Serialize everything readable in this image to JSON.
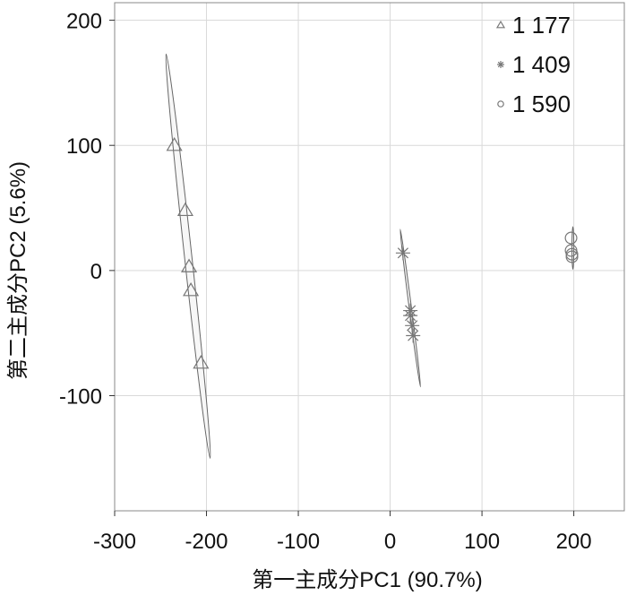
{
  "chart_data": {
    "type": "scatter",
    "title": "",
    "xlabel": "第一主成分PC1  (90.7%)",
    "ylabel": "第二主成分PC2 (5.6%)",
    "xlim": [
      -300,
      255
    ],
    "ylim": [
      -192,
      214
    ],
    "xticks": [
      -300,
      -200,
      -100,
      0,
      100,
      200
    ],
    "yticks": [
      -100,
      0,
      100,
      200
    ],
    "xtick_labels": [
      "-300",
      "-200",
      "-100",
      "0",
      "100",
      "200"
    ],
    "ytick_labels": [
      "-100",
      "0",
      "100",
      "200"
    ],
    "grid": true,
    "legend_position": "top-right",
    "series": [
      {
        "name": "1 177",
        "marker": "triangle",
        "points": [
          [
            -235,
            100
          ],
          [
            -223,
            48
          ],
          [
            -219,
            3
          ],
          [
            -217,
            -16
          ],
          [
            -206,
            -74
          ]
        ],
        "ellipse": {
          "end1": [
            -244,
            173
          ],
          "end2": [
            -196,
            -150
          ],
          "width": 8
        }
      },
      {
        "name": "1 409",
        "marker": "asterisk",
        "points": [
          [
            14,
            14
          ],
          [
            22,
            -32
          ],
          [
            22,
            -36
          ],
          [
            24,
            -44
          ],
          [
            25,
            -52
          ]
        ],
        "ellipse": {
          "end1": [
            11,
            33
          ],
          "end2": [
            33,
            -93
          ],
          "width": 2.5
        }
      },
      {
        "name": "1 590",
        "marker": "circle",
        "points": [
          [
            197,
            26
          ],
          [
            197,
            16
          ],
          [
            198,
            13
          ],
          [
            198,
            11
          ]
        ],
        "ellipse": {
          "end1": [
            199,
            35
          ],
          "end2": [
            199,
            1
          ],
          "width": 2
        }
      }
    ]
  },
  "colors": {
    "marker": "#777777",
    "grid": "#d9d9d9",
    "axis": "#333333"
  }
}
